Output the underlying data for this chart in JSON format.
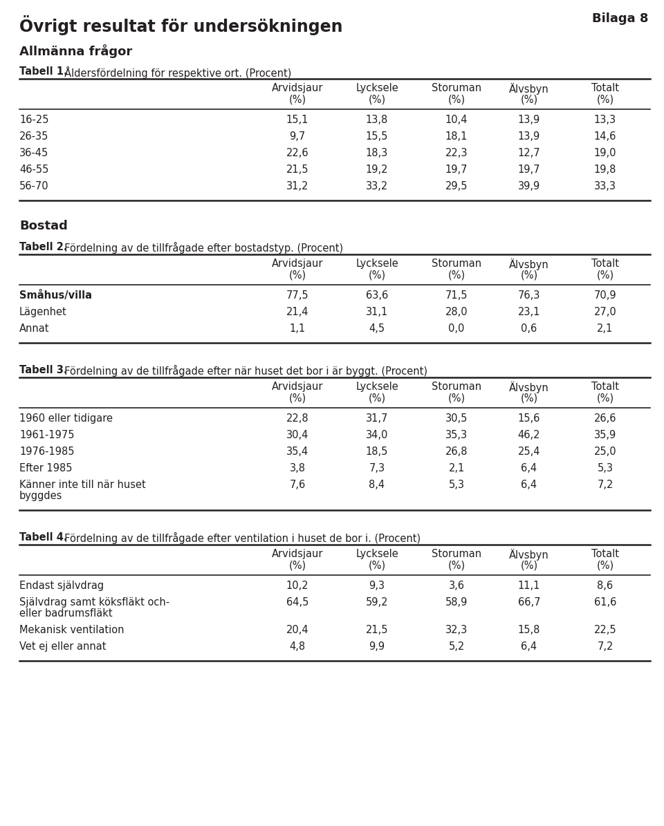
{
  "page_title": "Övrigt resultat för undersökningen",
  "bilaga": "Bilaga 8",
  "section1_title": "Allmänna frågor",
  "table1_caption_bold": "Tabell 1.",
  "table1_caption_rest": "  Åldersfördelning för respektive ort. (Procent)",
  "table1_rows": [
    [
      "16-25",
      "15,1",
      "13,8",
      "10,4",
      "13,9",
      "13,3"
    ],
    [
      "26-35",
      "9,7",
      "15,5",
      "18,1",
      "13,9",
      "14,6"
    ],
    [
      "36-45",
      "22,6",
      "18,3",
      "22,3",
      "12,7",
      "19,0"
    ],
    [
      "46-55",
      "21,5",
      "19,2",
      "19,7",
      "19,7",
      "19,8"
    ],
    [
      "56-70",
      "31,2",
      "33,2",
      "29,5",
      "39,9",
      "33,3"
    ]
  ],
  "section2_title": "Bostad",
  "table2_caption_bold": "Tabell 2.",
  "table2_caption_rest": "  Fördelning av de tillfrågade efter bostadstyp. (Procent)",
  "table2_rows": [
    [
      "Småhus/villa",
      "77,5",
      "63,6",
      "71,5",
      "76,3",
      "70,9"
    ],
    [
      "Lägenhet",
      "21,4",
      "31,1",
      "28,0",
      "23,1",
      "27,0"
    ],
    [
      "Annat",
      "1,1",
      "4,5",
      "0,0",
      "0,6",
      "2,1"
    ]
  ],
  "table2_row_bold": [
    true,
    false,
    false
  ],
  "table3_caption_bold": "Tabell 3.",
  "table3_caption_rest": "  Fördelning av de tillfrågade efter när huset det bor i är byggt. (Procent)",
  "table3_rows": [
    [
      "1960 eller tidigare",
      "22,8",
      "31,7",
      "30,5",
      "15,6",
      "26,6"
    ],
    [
      "1961-1975",
      "30,4",
      "34,0",
      "35,3",
      "46,2",
      "35,9"
    ],
    [
      "1976-1985",
      "35,4",
      "18,5",
      "26,8",
      "25,4",
      "25,0"
    ],
    [
      "Efter 1985",
      "3,8",
      "7,3",
      "2,1",
      "6,4",
      "5,3"
    ],
    [
      "Känner inte till när huset\nbyggdes",
      "7,6",
      "8,4",
      "5,3",
      "6,4",
      "7,2"
    ]
  ],
  "table4_caption_bold": "Tabell 4.",
  "table4_caption_rest": "  Fördelning av de tillfrågade efter ventilation i huset de bor i. (Procent)",
  "table4_rows": [
    [
      "Endast självdrag",
      "10,2",
      "9,3",
      "3,6",
      "11,1",
      "8,6"
    ],
    [
      "Självdrag samt köksfläkt och-\neller badrumsfläkt",
      "64,5",
      "59,2",
      "58,9",
      "66,7",
      "61,6"
    ],
    [
      "Mekanisk ventilation",
      "20,4",
      "21,5",
      "32,3",
      "15,8",
      "22,5"
    ],
    [
      "Vet ej eller annat",
      "4,8",
      "9,9",
      "5,2",
      "6,4",
      "7,2"
    ]
  ],
  "col_headers": [
    "Arvidsjaur",
    "Lycksele",
    "Storuman",
    "Älvsbyn",
    "Totalt"
  ],
  "bg_color": "#ffffff",
  "text_color": "#231f20"
}
